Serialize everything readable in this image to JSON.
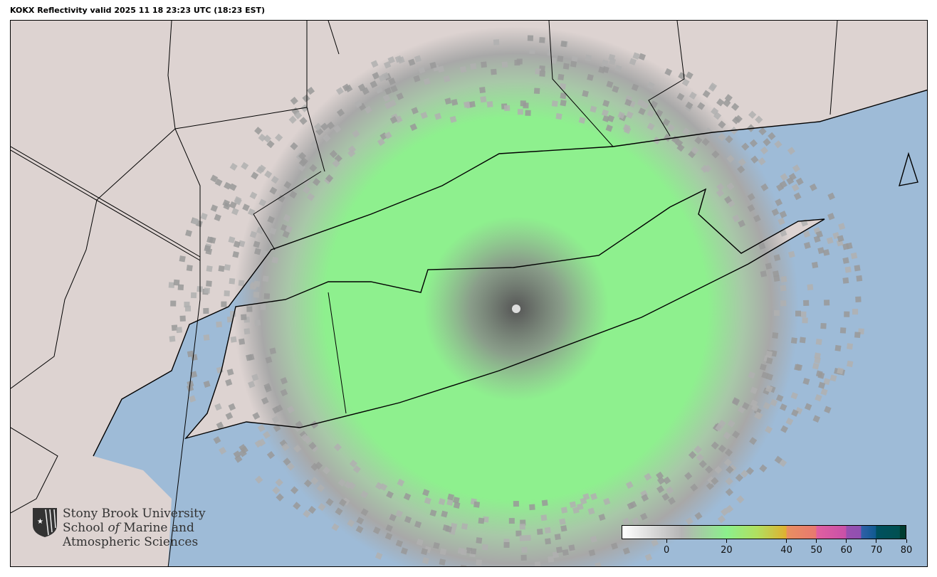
{
  "title": "KOKX Reflectivity valid 2025 11 18 23:23 UTC (18:23 EST)",
  "logo": {
    "line1": "Stony Brook University",
    "line2_a": "School ",
    "line2_b": "of",
    "line2_c": " Marine and",
    "line3": "Atmospheric Sciences",
    "icon": "sbu-shield-star-icon"
  },
  "colorbar": {
    "min": -15,
    "max": 80,
    "ticks": [
      0,
      20,
      40,
      50,
      60,
      70,
      80
    ],
    "tick_labels": [
      "0",
      "20",
      "40",
      "50",
      "60",
      "70",
      "80"
    ],
    "stops": [
      {
        "v": -15,
        "c": "#ffffff"
      },
      {
        "v": 5,
        "c": "#b4b4b4"
      },
      {
        "v": 20,
        "c": "#8cf08c"
      },
      {
        "v": 30,
        "c": "#b0e060"
      },
      {
        "v": 40,
        "c": "#e0b030"
      },
      {
        "v": 40.1,
        "c": "#e89060"
      },
      {
        "v": 50,
        "c": "#e87870"
      },
      {
        "v": 50.1,
        "c": "#e060a0"
      },
      {
        "v": 60,
        "c": "#c850a8"
      },
      {
        "v": 60.1,
        "c": "#9850b0"
      },
      {
        "v": 65,
        "c": "#9050b0"
      },
      {
        "v": 65.1,
        "c": "#3060a8"
      },
      {
        "v": 70,
        "c": "#105a90"
      },
      {
        "v": 70.1,
        "c": "#005060"
      },
      {
        "v": 78,
        "c": "#005050"
      },
      {
        "v": 78.1,
        "c": "#003c30"
      },
      {
        "v": 80,
        "c": "#003c30"
      }
    ]
  },
  "colors": {
    "ocean": "#9ebbd7",
    "land": "#ddd3d1",
    "echo_green": "#8ef08e",
    "echo_gray": "#a8a8a8"
  }
}
